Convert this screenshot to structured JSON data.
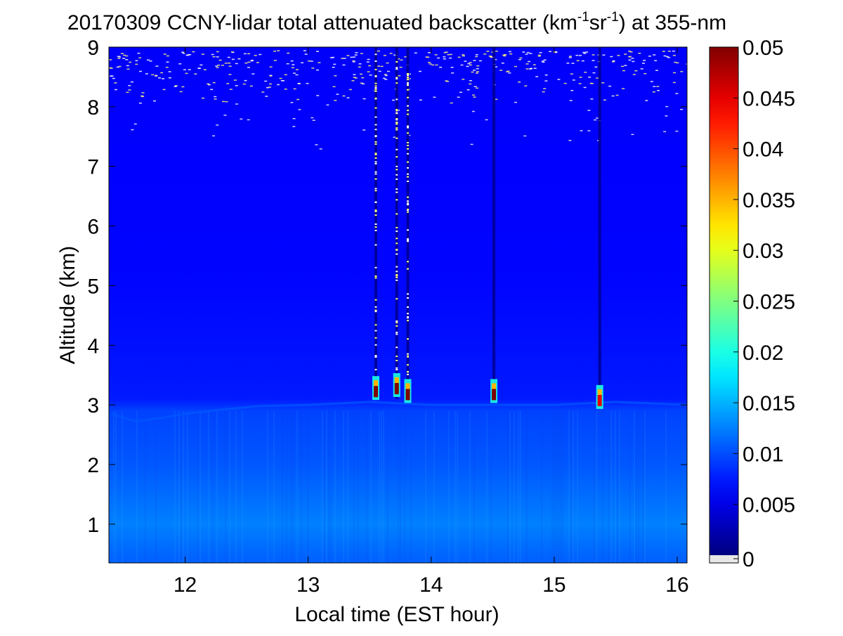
{
  "chart_data": {
    "type": "heatmap",
    "title": {
      "date": "20170309",
      "text_before_unit": "CCNY-lidar total attenuated backscatter (km",
      "sup1": "-1",
      "mid": "sr",
      "sup2": "-1",
      "text_after_unit": ") at 355-nm"
    },
    "xlabel": "Local time (EST hour)",
    "ylabel": "Altitude (km)",
    "xlim": [
      11.38,
      16.08
    ],
    "ylim": [
      0.35,
      9
    ],
    "x_ticks": [
      "12",
      "13",
      "14",
      "15",
      "16"
    ],
    "y_ticks": [
      "1",
      "2",
      "3",
      "4",
      "5",
      "6",
      "7",
      "8",
      "9"
    ],
    "colorbar": {
      "range": [
        0,
        0.05
      ],
      "colormap": "jet",
      "ticks": [
        "0",
        "0.005",
        "0.01",
        "0.015",
        "0.02",
        "0.025",
        "0.03",
        "0.035",
        "0.04",
        "0.045",
        "0.05"
      ],
      "below_range_color": "#e8e8e8"
    },
    "background_profile": [
      {
        "altitude_km": 0.4,
        "value": 0.011
      },
      {
        "altitude_km": 1.0,
        "value": 0.0125
      },
      {
        "altitude_km": 2.0,
        "value": 0.0105
      },
      {
        "altitude_km": 2.9,
        "value": 0.0095
      },
      {
        "altitude_km": 3.1,
        "value": 0.0075
      },
      {
        "altitude_km": 5.0,
        "value": 0.0065
      },
      {
        "altitude_km": 7.0,
        "value": 0.0062
      },
      {
        "altitude_km": 9.0,
        "value": 0.006
      }
    ],
    "boundary_layer_top": [
      {
        "time": 11.4,
        "altitude_km": 2.85
      },
      {
        "time": 11.6,
        "altitude_km": 2.72
      },
      {
        "time": 11.8,
        "altitude_km": 2.78
      },
      {
        "time": 12.0,
        "altitude_km": 2.85
      },
      {
        "time": 12.3,
        "altitude_km": 2.92
      },
      {
        "time": 12.6,
        "altitude_km": 2.98
      },
      {
        "time": 13.0,
        "altitude_km": 3.0
      },
      {
        "time": 13.5,
        "altitude_km": 3.05
      },
      {
        "time": 14.0,
        "altitude_km": 3.0
      },
      {
        "time": 14.5,
        "altitude_km": 3.0
      },
      {
        "time": 15.0,
        "altitude_km": 3.0
      },
      {
        "time": 15.5,
        "altitude_km": 3.05
      },
      {
        "time": 16.08,
        "altitude_km": 3.0
      }
    ],
    "cloud_features": [
      {
        "time": 13.55,
        "altitude_km": 3.2,
        "value": 0.05
      },
      {
        "time": 13.72,
        "altitude_km": 3.25,
        "value": 0.05
      },
      {
        "time": 13.81,
        "altitude_km": 3.15,
        "value": 0.05
      },
      {
        "time": 14.51,
        "altitude_km": 3.15,
        "value": 0.05
      },
      {
        "time": 15.37,
        "altitude_km": 3.05,
        "value": 0.045
      }
    ],
    "signal_dropout_columns": [
      13.55,
      13.72,
      13.81,
      14.51,
      15.37
    ],
    "grid": false
  }
}
